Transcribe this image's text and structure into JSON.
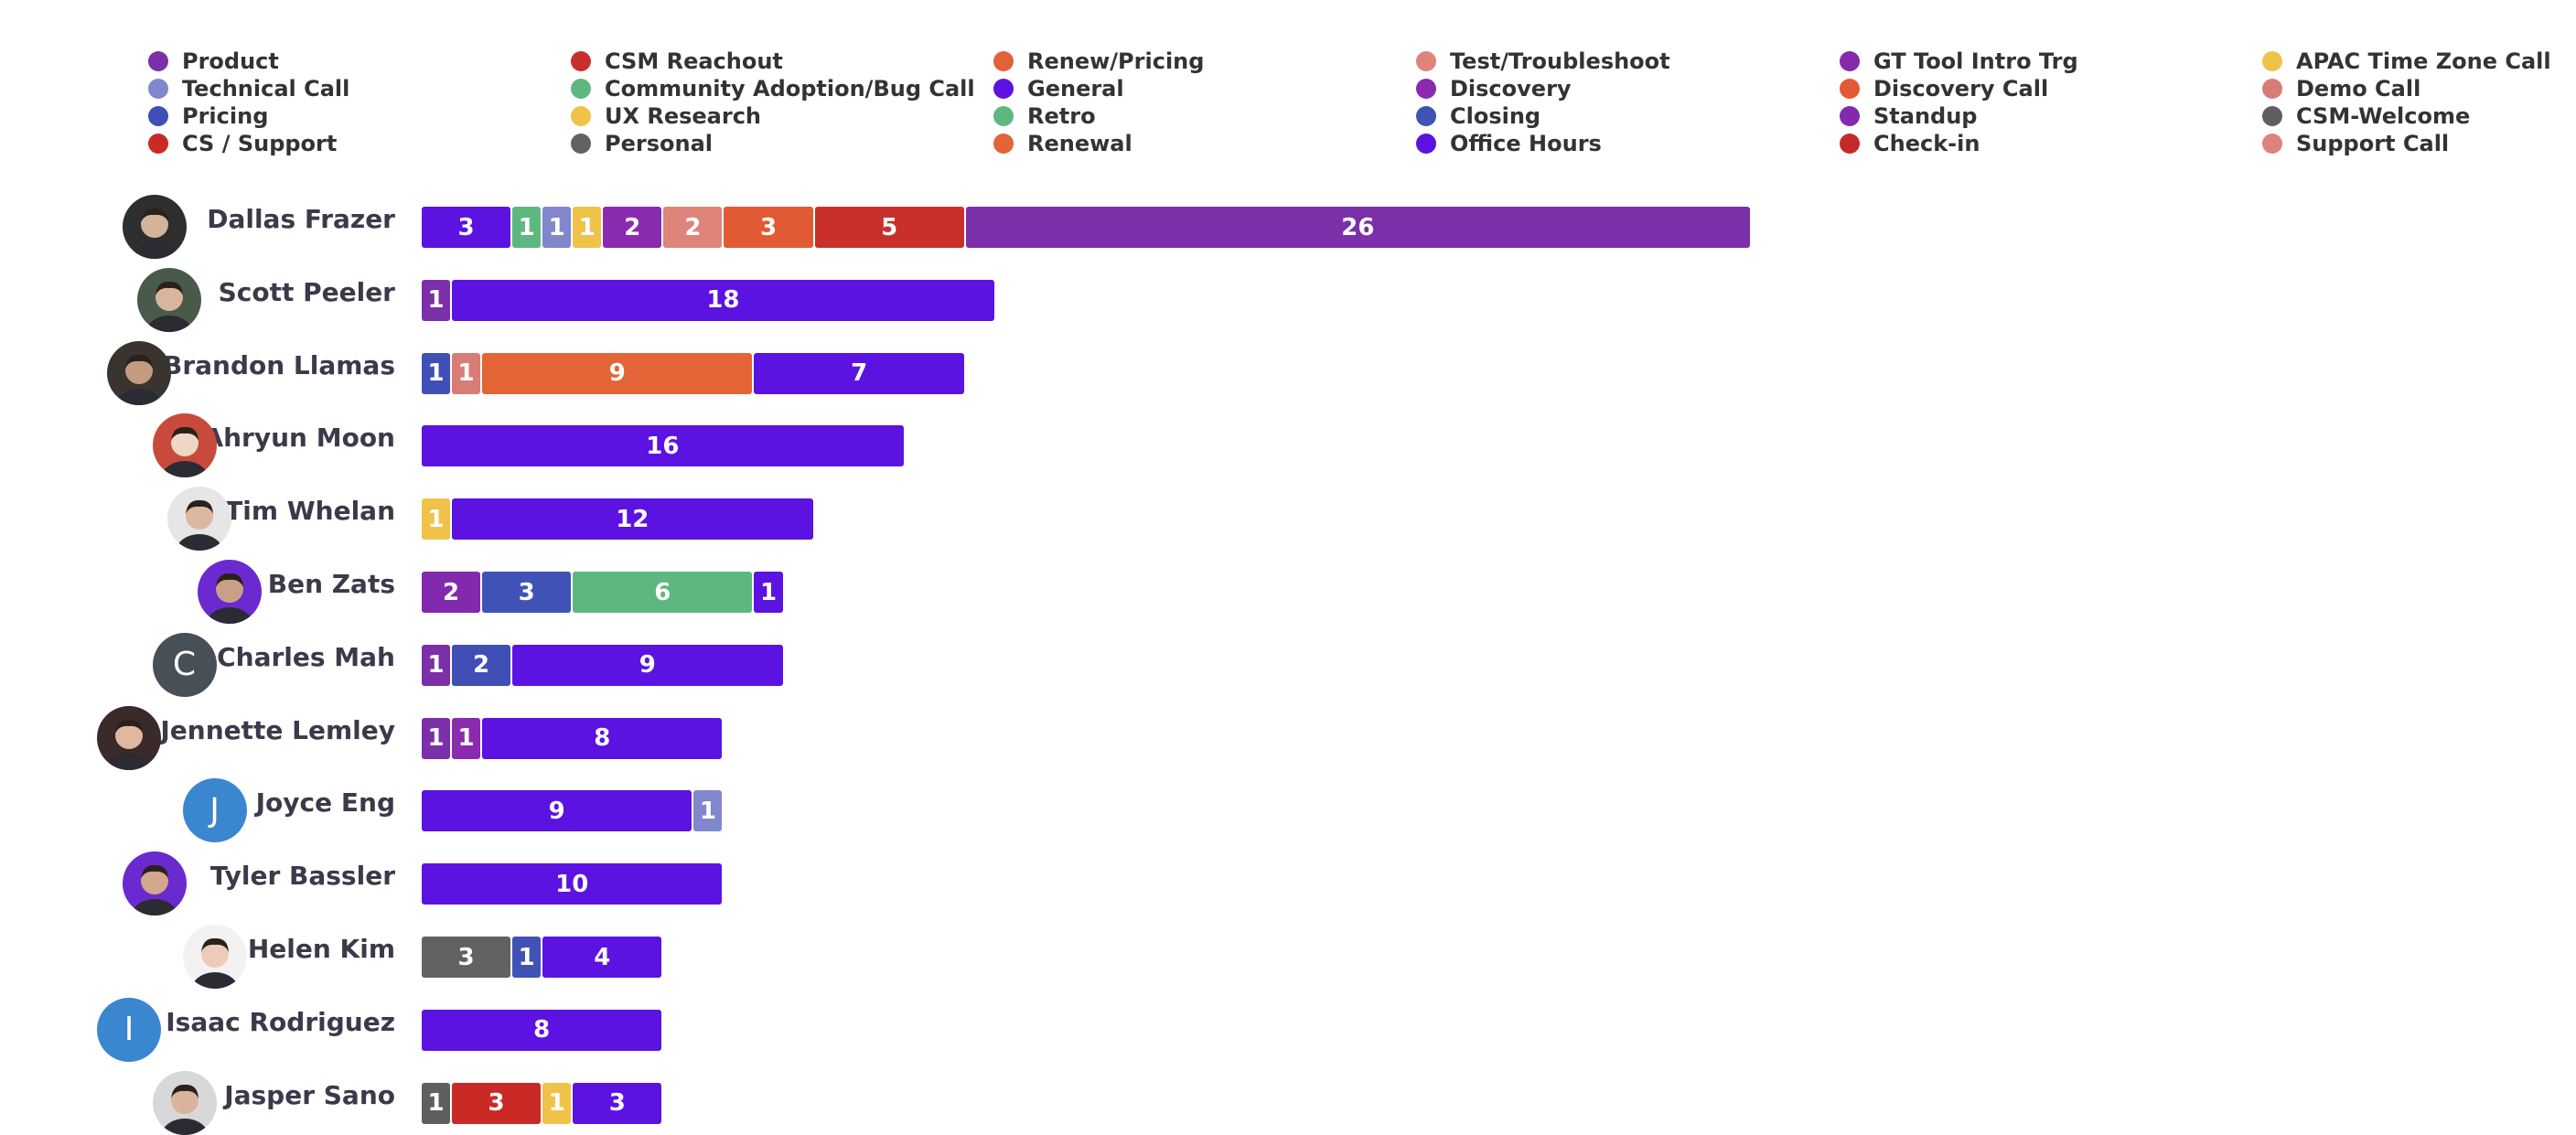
{
  "colors": {
    "Product": "#7b2fa8",
    "CSM Reachout": "#c9302c",
    "Renew/Pricing": "#e06236",
    "Test/Troubleshoot": "#de8479",
    "GT Tool Intro Trg": "#842aaa",
    "APAC Time Zone Call": "#efc24a",
    "Technical Call": "#8087cc",
    "Community Adoption/Bug Call": "#5db880",
    "General": "#5c12e0",
    "Discovery": "#8a2aae",
    "Discovery Call": "#e25a34",
    "Demo Call": "#d87c76",
    "Pricing": "#3f4fb6",
    "UX Research": "#efc24a",
    "Retro": "#5db880",
    "Closing": "#4052b5",
    "Standup": "#8229ad",
    "CSM-Welcome": "#5f5f5f",
    "CS / Support": "#c92a26",
    "Personal": "#626262",
    "Renewal": "#e36436",
    "Office Hours": "#5c12e0",
    "Check-in": "#c62a28",
    "Support Call": "#dc837c"
  },
  "chart_data": {
    "type": "bar",
    "orientation": "horizontal",
    "stacked": true,
    "legend": {
      "position": "top",
      "columns": [
        [
          "Product",
          "Technical Call",
          "Pricing",
          "CS / Support"
        ],
        [
          "CSM Reachout",
          "Community Adoption/Bug Call",
          "UX Research",
          "Personal"
        ],
        [
          "Renew/Pricing",
          "General",
          "Retro",
          "Renewal"
        ],
        [
          "Test/Troubleshoot",
          "Discovery",
          "Closing",
          "Office Hours"
        ],
        [
          "GT Tool Intro Trg",
          "Discovery Call",
          "Standup",
          "Check-in"
        ],
        [
          "APAC Time Zone Call",
          "Demo Call",
          "CSM-Welcome",
          "Support Call"
        ]
      ]
    },
    "xlim": [
      0,
      26
    ],
    "rows": [
      {
        "name": "Dallas Frazer",
        "avatar": {
          "type": "photo",
          "bg": "#2e2e2e",
          "face": "#d3b39a"
        },
        "segments": [
          {
            "category": "General",
            "value": 3
          },
          {
            "category": "Retro",
            "value": 1
          },
          {
            "category": "Technical Call",
            "value": 1
          },
          {
            "category": "UX Research",
            "value": 1
          },
          {
            "category": "Discovery",
            "value": 2
          },
          {
            "category": "Test/Troubleshoot",
            "value": 2
          },
          {
            "category": "Discovery Call",
            "value": 3
          },
          {
            "category": "CSM Reachout",
            "value": 5
          },
          {
            "category": "Product",
            "value": 26
          }
        ]
      },
      {
        "name": "Scott Peeler",
        "avatar": {
          "type": "photo",
          "bg": "#4a5a4a",
          "face": "#d9b59c"
        },
        "segments": [
          {
            "category": "Product",
            "value": 1
          },
          {
            "category": "Office Hours",
            "value": 18
          }
        ]
      },
      {
        "name": "Brandon Llamas",
        "avatar": {
          "type": "photo",
          "bg": "#3a3430",
          "face": "#c49a80"
        },
        "segments": [
          {
            "category": "Pricing",
            "value": 1
          },
          {
            "category": "Demo Call",
            "value": 1
          },
          {
            "category": "Renewal",
            "value": 9
          },
          {
            "category": "Office Hours",
            "value": 7
          }
        ]
      },
      {
        "name": "Ahryun Moon",
        "avatar": {
          "type": "photo",
          "bg": "#c84a3c",
          "face": "#f0d6c4"
        },
        "segments": [
          {
            "category": "Office Hours",
            "value": 16
          }
        ]
      },
      {
        "name": "Tim Whelan",
        "avatar": {
          "type": "photo",
          "bg": "#e6e6e6",
          "face": "#dcb8a0"
        },
        "segments": [
          {
            "category": "APAC Time Zone Call",
            "value": 1
          },
          {
            "category": "Office Hours",
            "value": 12
          }
        ]
      },
      {
        "name": "Ben Zats",
        "avatar": {
          "type": "photo",
          "bg": "#6a2ad0",
          "face": "#c8a088"
        },
        "segments": [
          {
            "category": "Standup",
            "value": 2
          },
          {
            "category": "Closing",
            "value": 3
          },
          {
            "category": "Retro",
            "value": 6
          },
          {
            "category": "Office Hours",
            "value": 1
          }
        ]
      },
      {
        "name": "Charles Mah",
        "avatar": {
          "type": "letter",
          "letter": "C",
          "bg": "#475057"
        },
        "segments": [
          {
            "category": "Product",
            "value": 1
          },
          {
            "category": "Pricing",
            "value": 2
          },
          {
            "category": "Office Hours",
            "value": 9
          }
        ]
      },
      {
        "name": "Jennette Lemley",
        "avatar": {
          "type": "photo",
          "bg": "#3a2a2a",
          "face": "#e0b8a0"
        },
        "segments": [
          {
            "category": "Product",
            "value": 1
          },
          {
            "category": "Discovery",
            "value": 1
          },
          {
            "category": "Office Hours",
            "value": 8
          }
        ]
      },
      {
        "name": "Joyce Eng",
        "avatar": {
          "type": "letter",
          "letter": "J",
          "bg": "#3a86cf"
        },
        "segments": [
          {
            "category": "Office Hours",
            "value": 9
          },
          {
            "category": "Technical Call",
            "value": 1
          }
        ]
      },
      {
        "name": "Tyler Bassler",
        "avatar": {
          "type": "photo",
          "bg": "#6a2ad0",
          "face": "#d4a88c"
        },
        "segments": [
          {
            "category": "Office Hours",
            "value": 10
          }
        ]
      },
      {
        "name": "Helen Kim",
        "avatar": {
          "type": "photo",
          "bg": "#f2f2f2",
          "face": "#ecccb8"
        },
        "segments": [
          {
            "category": "Personal",
            "value": 3
          },
          {
            "category": "Closing",
            "value": 1
          },
          {
            "category": "Office Hours",
            "value": 4
          }
        ]
      },
      {
        "name": "Isaac Rodriguez",
        "avatar": {
          "type": "letter",
          "letter": "I",
          "bg": "#3a86cf"
        },
        "segments": [
          {
            "category": "Office Hours",
            "value": 8
          }
        ]
      },
      {
        "name": "Jasper Sano",
        "avatar": {
          "type": "photo",
          "bg": "#d8d8d8",
          "face": "#d8b49c"
        },
        "segments": [
          {
            "category": "CSM-Welcome",
            "value": 1
          },
          {
            "category": "CS / Support",
            "value": 3
          },
          {
            "category": "APAC Time Zone Call",
            "value": 1
          },
          {
            "category": "Office Hours",
            "value": 3
          }
        ]
      }
    ]
  }
}
